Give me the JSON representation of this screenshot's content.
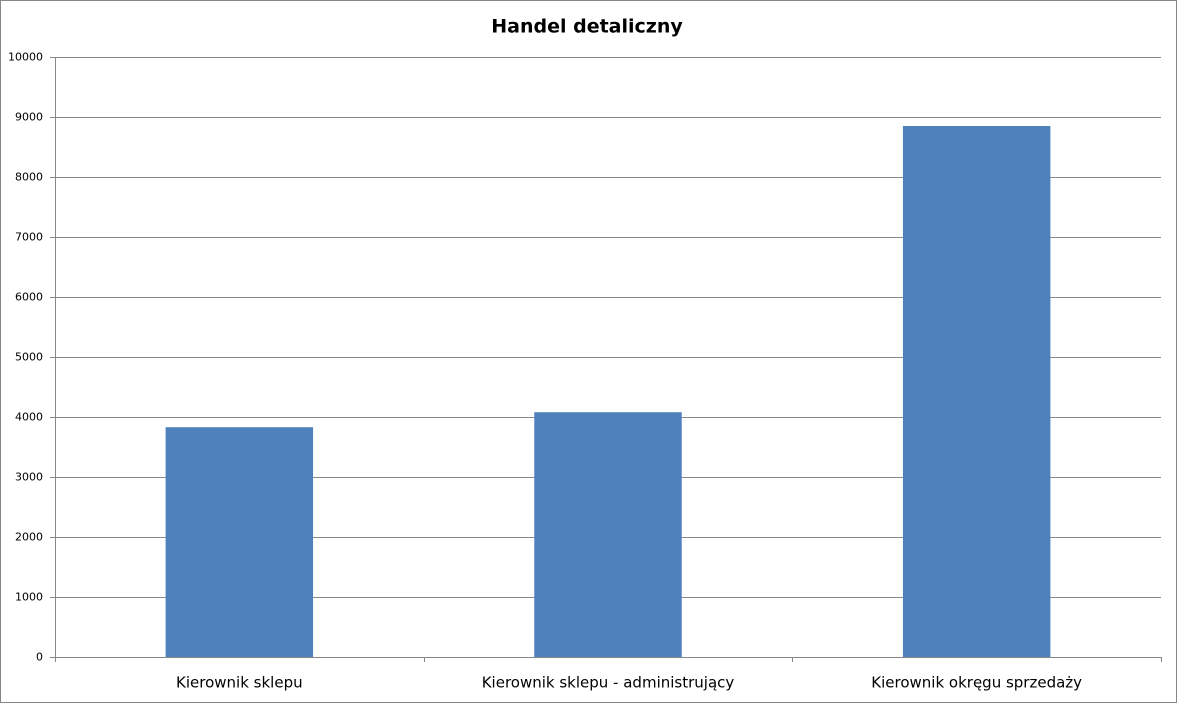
{
  "chart_data": {
    "type": "bar",
    "title": "Handel detaliczny",
    "categories": [
      "Kierownik sklepu",
      "Kierownik sklepu - administrujący",
      "Kierownik okręgu sprzedaży"
    ],
    "values": [
      3830,
      4080,
      8850
    ],
    "color": "#4f81bd",
    "ylim": [
      0,
      10000
    ],
    "yticks": [
      0,
      1000,
      2000,
      3000,
      4000,
      5000,
      6000,
      7000,
      8000,
      9000,
      10000
    ],
    "grid": true
  }
}
